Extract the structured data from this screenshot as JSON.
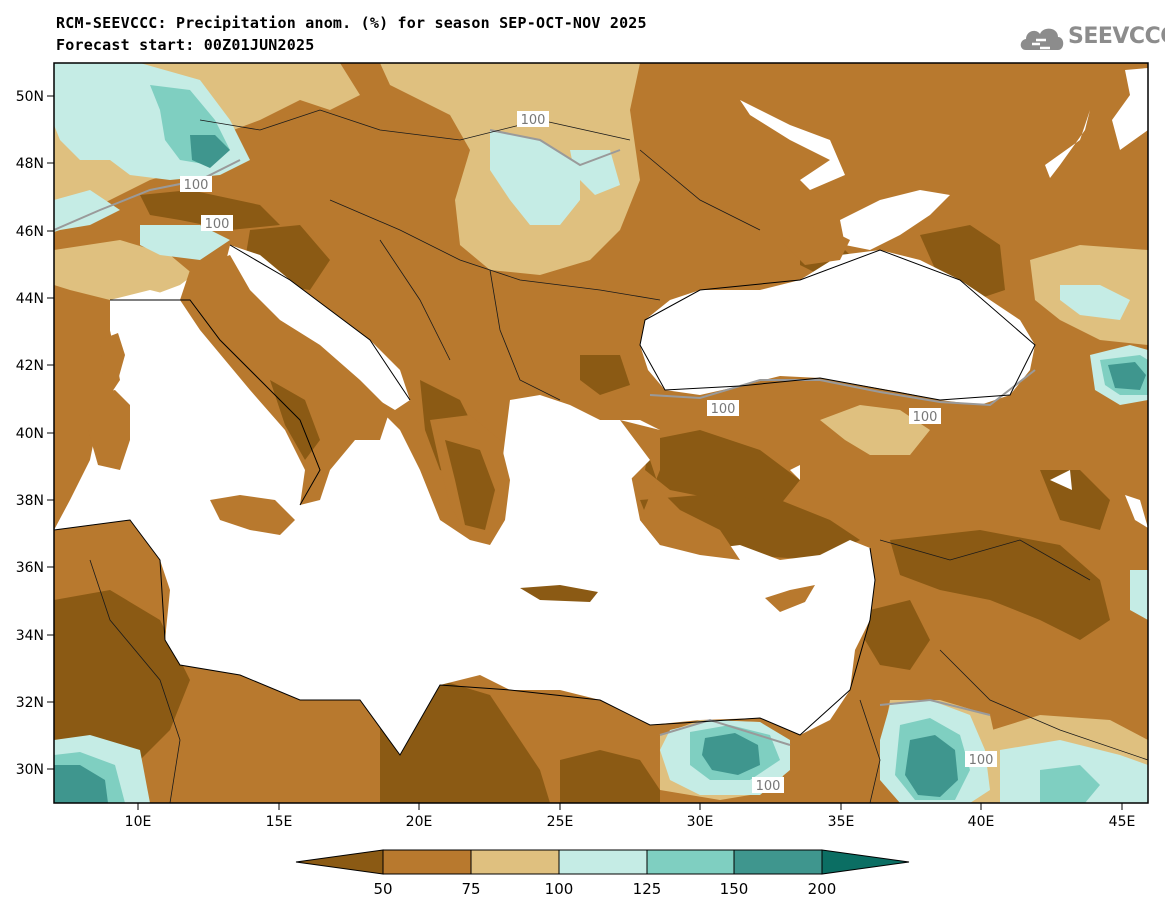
{
  "title_line1": "RCM-SEEVCCC: Precipitation anom. (%) for season SEP-OCT-NOV 2025",
  "title_line2": "Forecast start: 00Z01JUN2025",
  "logo": {
    "text": "SEEVCCC",
    "icon": "cloud-icon"
  },
  "axes": {
    "lat_ticks": [
      "50N",
      "48N",
      "46N",
      "44N",
      "42N",
      "40N",
      "38N",
      "36N",
      "34N",
      "32N",
      "30N"
    ],
    "lon_ticks": [
      "10E",
      "15E",
      "20E",
      "25E",
      "30E",
      "35E",
      "40E",
      "45E"
    ]
  },
  "colorbar": {
    "colors": [
      "#8b5a14",
      "#b8792e",
      "#dfc07f",
      "#c5ece5",
      "#7fcfc1",
      "#3f968e",
      "#0b6e63"
    ],
    "labels": [
      "50",
      "75",
      "100",
      "125",
      "150",
      "200"
    ]
  },
  "contour_labels": [
    "100",
    "100",
    "100",
    "100",
    "100",
    "100",
    "100"
  ],
  "palette": {
    "sea": "#ffffff",
    "coast": "#000000",
    "border": "#222222"
  }
}
